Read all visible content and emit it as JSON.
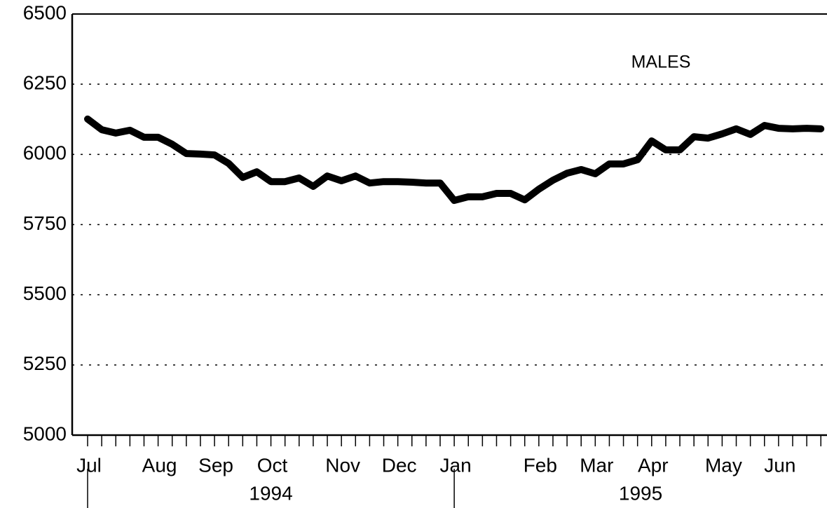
{
  "chart_data": {
    "type": "line",
    "annotation": "MALES",
    "categories": [
      "Jul",
      null,
      null,
      null,
      null,
      "Aug",
      null,
      null,
      null,
      "Sep",
      null,
      null,
      null,
      "Oct",
      null,
      null,
      null,
      null,
      "Nov",
      null,
      null,
      null,
      "Dec",
      null,
      null,
      null,
      "Jan",
      null,
      null,
      null,
      null,
      null,
      "Feb",
      null,
      null,
      null,
      "Mar",
      null,
      null,
      null,
      "Apr",
      null,
      null,
      null,
      null,
      "May",
      null,
      null,
      null,
      "Jun",
      null,
      null,
      null
    ],
    "year_labels": [
      "1994",
      "1995"
    ],
    "series": [
      {
        "color": "#000000",
        "values": [
          6126,
          6088,
          6076,
          6086,
          6061,
          6061,
          6036,
          6003,
          6001,
          5998,
          5968,
          5918,
          5938,
          5903,
          5903,
          5916,
          5886,
          5923,
          5906,
          5923,
          5898,
          5903,
          5903,
          5901,
          5898,
          5898,
          5836,
          5849,
          5849,
          5861,
          5861,
          5838,
          5876,
          5908,
          5933,
          5946,
          5931,
          5966,
          5966,
          5981,
          6048,
          6016,
          6016,
          6063,
          6058,
          6073,
          6091,
          6071,
          6103,
          6093,
          6091,
          6093,
          6091
        ]
      }
    ],
    "ylim": [
      5000,
      6500
    ],
    "yticks": [
      5000,
      5250,
      5500,
      5750,
      6000,
      6250,
      6500
    ],
    "grid": true
  }
}
